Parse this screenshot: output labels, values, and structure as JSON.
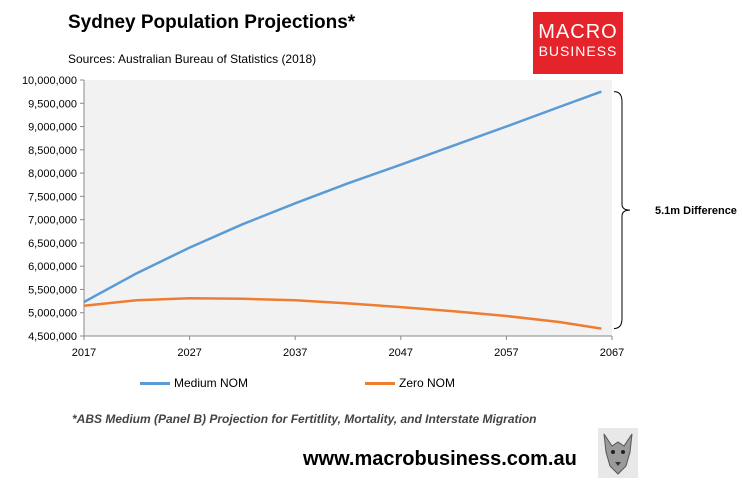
{
  "title": "Sydney Population Projections*",
  "source": "Sources: Australian Bureau of Statistics (2018)",
  "logo": {
    "line1": "MACRO",
    "line2": "BUSINESS"
  },
  "footnote": "*ABS Medium (Panel B) Projection for Fertitlity, Mortality, and Interstate Migration",
  "website": "www.macrobusiness.com.au",
  "annotation": "5.1m Difference",
  "colors": {
    "medium": "#5b9bd5",
    "zero": "#ed7d31",
    "plot_bg": "#f2f2f2",
    "logo_bg": "#e5232b"
  },
  "chart_data": {
    "type": "line",
    "title": "Sydney Population Projections*",
    "xlabel": "",
    "ylabel": "",
    "xlim": [
      2017,
      2067
    ],
    "ylim": [
      4500000,
      10000000
    ],
    "x_ticks": [
      "2017",
      "2027",
      "2037",
      "2047",
      "2057",
      "2067"
    ],
    "y_ticks": [
      "4,500,000",
      "5,000,000",
      "5,500,000",
      "6,000,000",
      "6,500,000",
      "7,000,000",
      "7,500,000",
      "8,000,000",
      "8,500,000",
      "9,000,000",
      "9,500,000",
      "10,000,000"
    ],
    "x": [
      2017,
      2022,
      2027,
      2032,
      2037,
      2042,
      2047,
      2052,
      2057,
      2062,
      2066
    ],
    "series": [
      {
        "name": "Medium NOM",
        "values": [
          5230000,
          5850000,
          6400000,
          6900000,
          7350000,
          7780000,
          8180000,
          8590000,
          9000000,
          9420000,
          9750000
        ]
      },
      {
        "name": "Zero NOM",
        "values": [
          5150000,
          5270000,
          5310000,
          5300000,
          5270000,
          5200000,
          5120000,
          5030000,
          4930000,
          4800000,
          4660000
        ]
      }
    ],
    "legend_position": "bottom"
  }
}
